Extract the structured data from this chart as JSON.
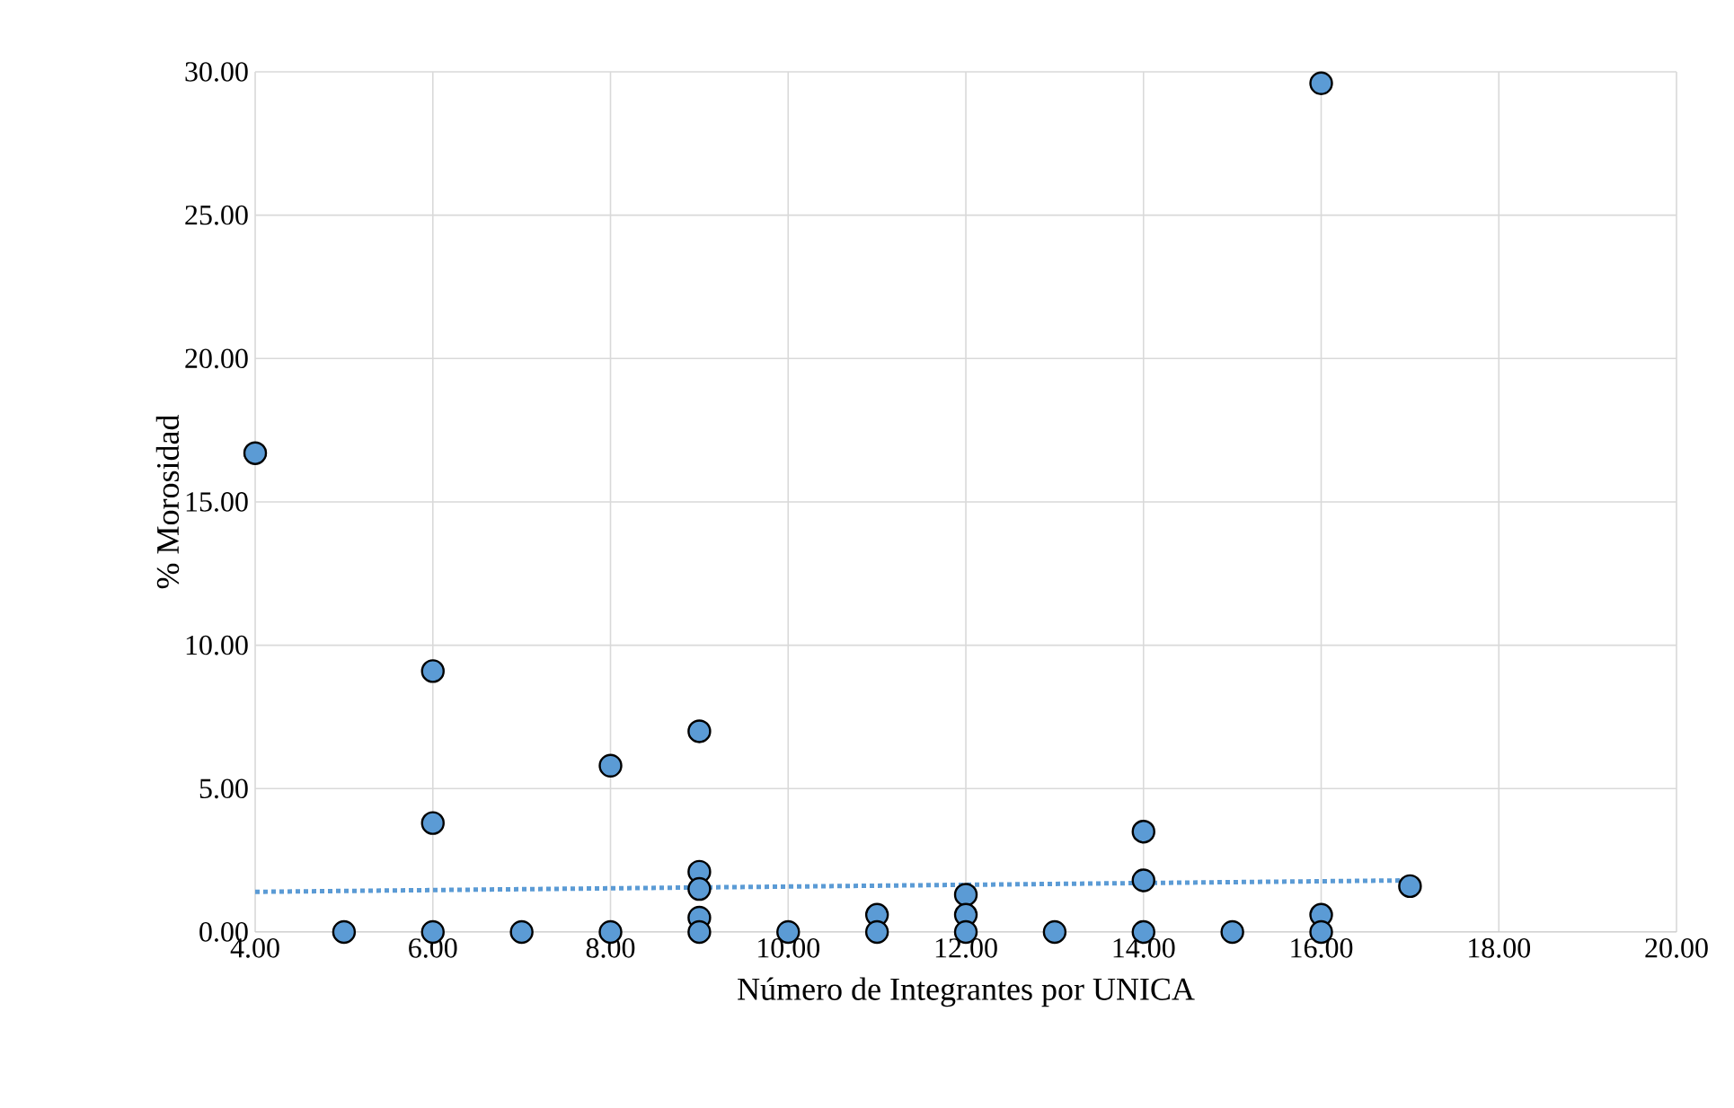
{
  "chart_data": {
    "type": "scatter",
    "xlabel": "Número de Integrantes por UNICA",
    "ylabel": "% Morosidad",
    "xlim": [
      4,
      20
    ],
    "ylim": [
      0,
      30
    ],
    "xticks": [
      {
        "value": 4,
        "label": "4.00"
      },
      {
        "value": 6,
        "label": "6.00"
      },
      {
        "value": 8,
        "label": "8.00"
      },
      {
        "value": 10,
        "label": "10.00"
      },
      {
        "value": 12,
        "label": "12.00"
      },
      {
        "value": 14,
        "label": "14.00"
      },
      {
        "value": 16,
        "label": "16.00"
      },
      {
        "value": 18,
        "label": "18.00"
      },
      {
        "value": 20,
        "label": "20.00"
      }
    ],
    "yticks": [
      {
        "value": 0,
        "label": "0.00"
      },
      {
        "value": 5,
        "label": "5.00"
      },
      {
        "value": 10,
        "label": "10.00"
      },
      {
        "value": 15,
        "label": "15.00"
      },
      {
        "value": 20,
        "label": "20.00"
      },
      {
        "value": 25,
        "label": "25.00"
      },
      {
        "value": 30,
        "label": "30.00"
      }
    ],
    "grid": true,
    "series": [
      {
        "color": "#5b9bd5",
        "marker": "circle",
        "x": [
          4,
          5,
          6,
          6,
          6,
          7,
          8,
          8,
          9,
          9,
          9,
          9,
          9,
          10,
          11,
          11,
          12,
          12,
          12,
          13,
          14,
          14,
          14,
          15,
          16,
          16,
          16,
          17
        ],
        "values": [
          16.7,
          0,
          9.1,
          3.8,
          0,
          0,
          5.8,
          0,
          7.0,
          2.1,
          1.5,
          0.5,
          0,
          0,
          0.6,
          0,
          1.3,
          0.6,
          0,
          0,
          3.5,
          1.8,
          0,
          0,
          29.6,
          0.6,
          0,
          1.6
        ]
      },
      {
        "type": "line",
        "color": "#5b9bd5",
        "line_style": "dotted",
        "marker": "none",
        "x": [
          4,
          17
        ],
        "values": [
          1.4,
          1.8
        ]
      }
    ]
  }
}
